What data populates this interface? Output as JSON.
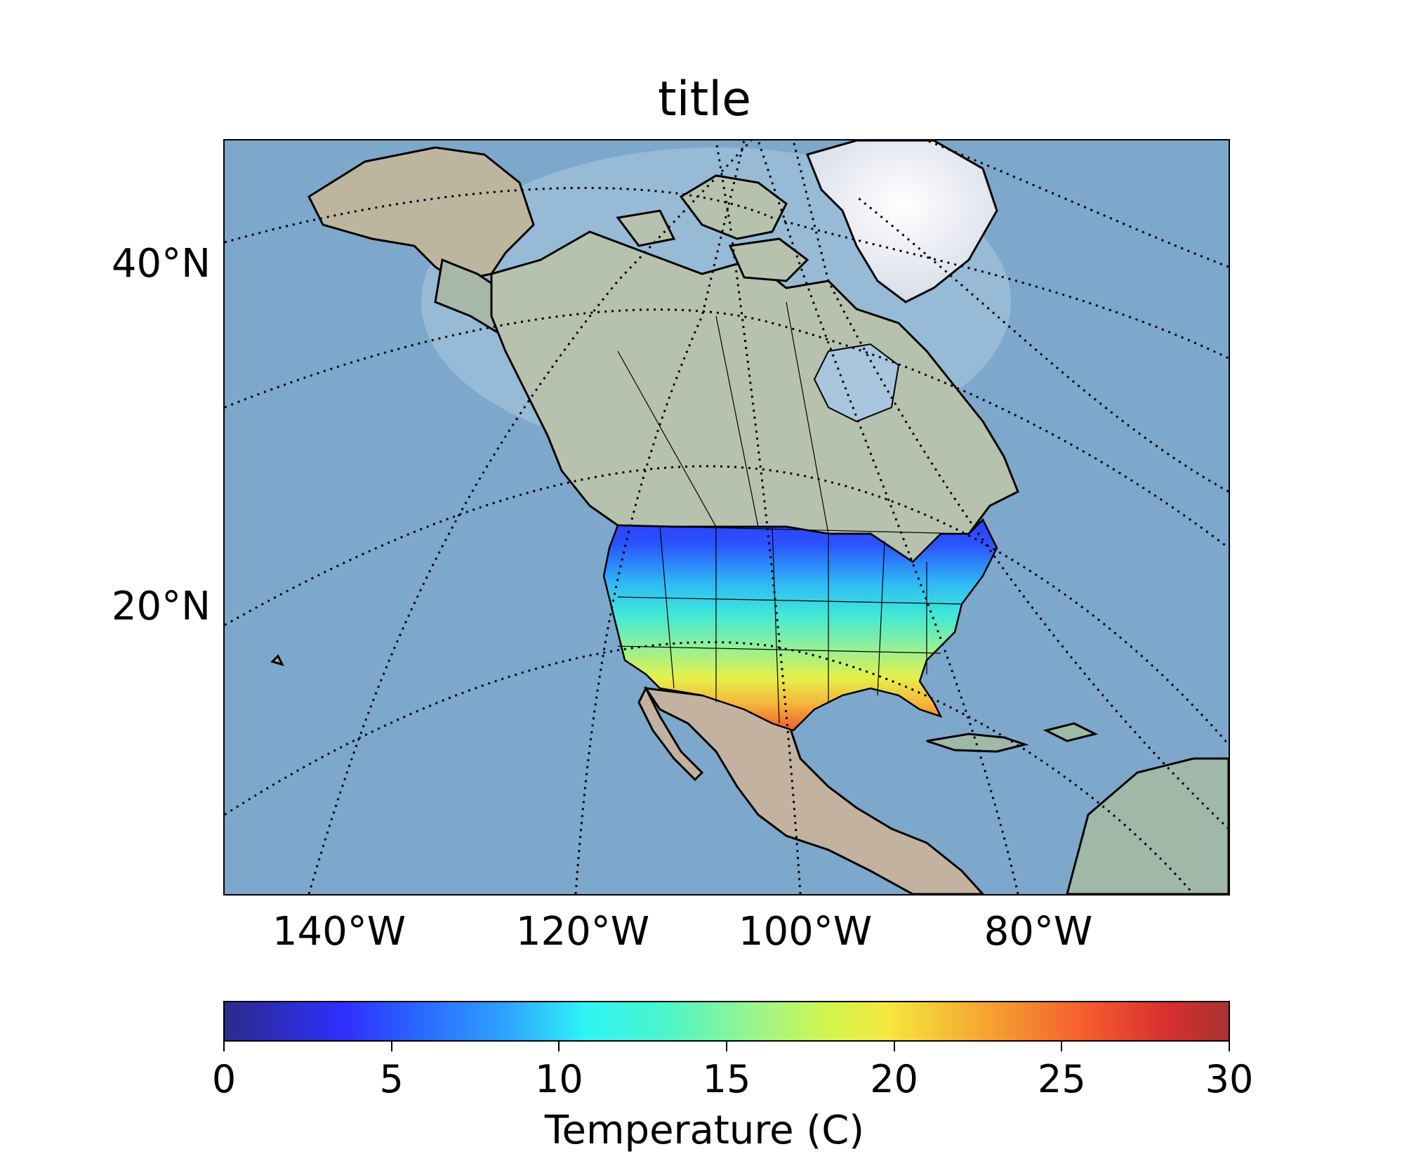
{
  "map": {
    "title": "title",
    "latitude_labels": [
      "40°N",
      "20°N"
    ],
    "longitude_labels": [
      "140°W",
      "120°W",
      "100°W",
      "80°W"
    ],
    "projection": "lambert-conformal-conic",
    "basemap": "shaded-relief",
    "gridlines": "dotted",
    "ocean_color": "#7ea7cc",
    "land_color": "#9fb8a8"
  },
  "colorbar": {
    "label": "Temperature (C)",
    "ticks": [
      "0",
      "5",
      "10",
      "15",
      "20",
      "25",
      "30"
    ],
    "range": [
      0,
      30
    ],
    "colormap": "jet",
    "orientation": "horizontal"
  }
}
